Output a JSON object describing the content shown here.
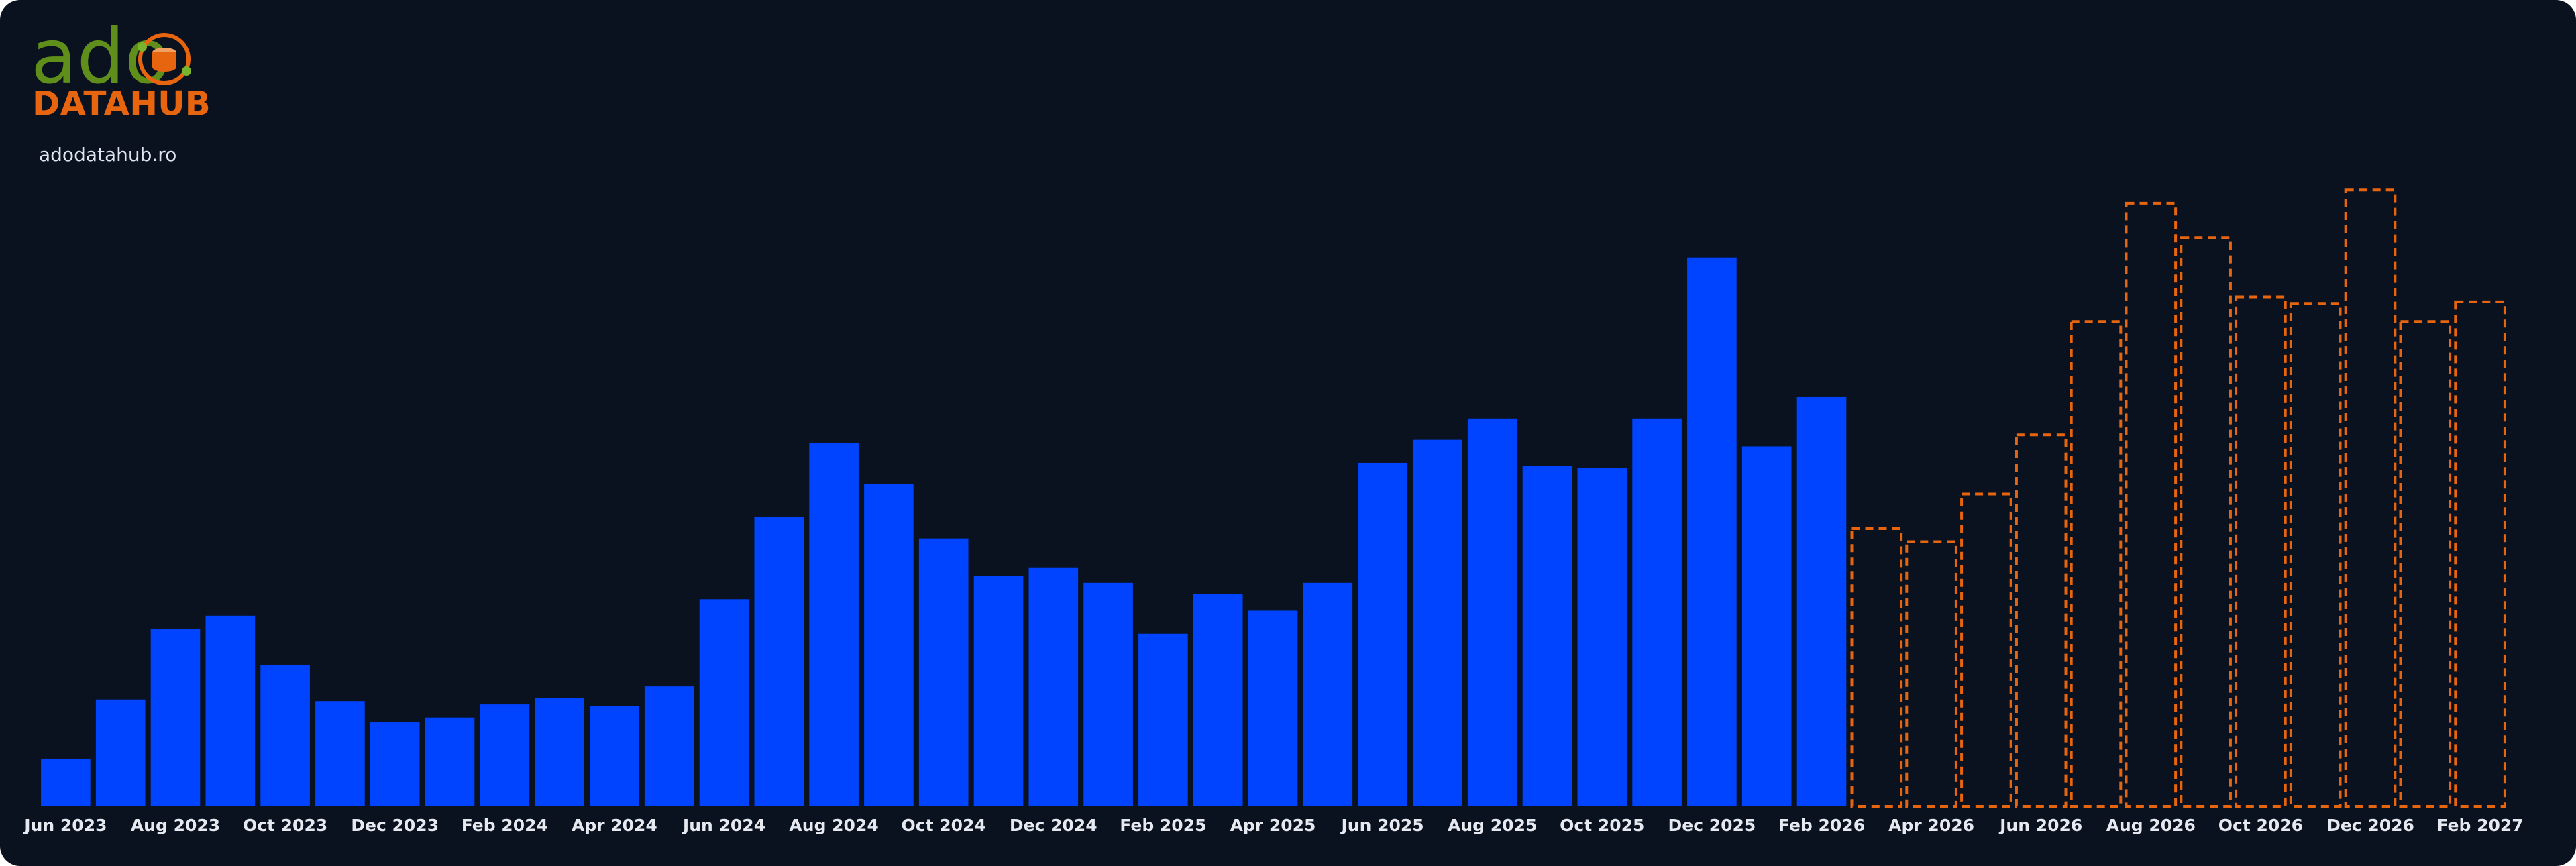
{
  "branding": {
    "logo_main": "ado",
    "logo_sub": "DATAHUB",
    "url": "adodatahub.ro"
  },
  "chart_data": {
    "type": "bar",
    "categories": [
      "Jun 2023",
      null,
      "Aug 2023",
      null,
      "Oct 2023",
      null,
      "Dec 2023",
      null,
      "Feb 2024",
      null,
      "Apr 2024",
      null,
      "Jun 2024",
      null,
      "Aug 2024",
      null,
      "Oct 2024",
      null,
      "Dec 2024",
      null,
      "Feb 2025",
      null,
      "Apr 2025",
      null,
      "Jun 2025",
      null,
      "Aug 2025",
      null,
      "Oct 2025",
      null,
      "Dec 2025",
      null,
      "Feb 2026",
      null,
      "Apr 2026",
      null,
      "Jun 2026",
      null,
      "Aug 2026",
      null,
      "Oct 2026",
      null,
      "Dec 2026",
      null,
      "Feb 2027"
    ],
    "series": [
      {
        "color": "#0044ff",
        "dashed": false,
        "values": [
          29,
          65,
          108,
          116,
          86,
          64,
          51,
          54,
          62,
          66,
          61,
          73,
          126,
          176,
          221,
          196,
          163,
          140,
          145,
          136,
          105,
          129,
          119,
          136,
          209,
          223,
          236,
          207,
          206,
          236,
          334,
          219,
          249,
          null,
          null,
          null,
          null,
          null,
          null,
          null,
          null,
          null,
          null,
          null,
          null
        ]
      },
      {
        "color": "#e8650f",
        "dashed": true,
        "values": [
          null,
          null,
          null,
          null,
          null,
          null,
          null,
          null,
          null,
          null,
          null,
          null,
          null,
          null,
          null,
          null,
          null,
          null,
          null,
          null,
          null,
          null,
          null,
          null,
          null,
          null,
          null,
          null,
          null,
          null,
          null,
          null,
          null,
          169,
          161,
          190,
          226,
          295,
          367,
          346,
          310,
          306,
          375,
          295,
          307
        ]
      }
    ],
    "ylim": [
      0,
      400
    ]
  }
}
